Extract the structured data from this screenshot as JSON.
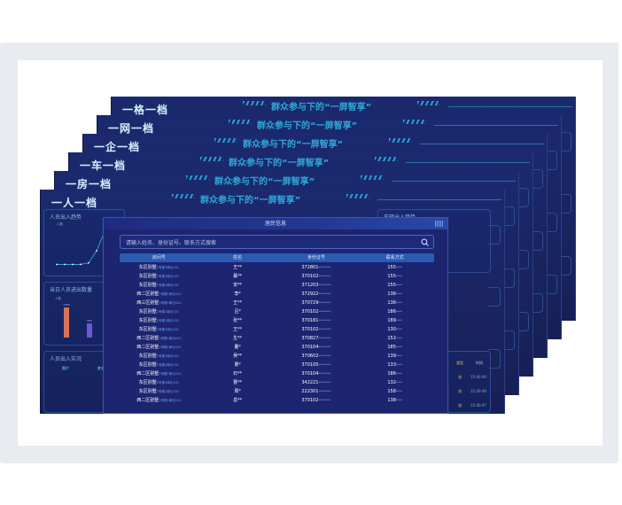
{
  "banner": "群众参与下的“一屏智享”",
  "sheets": [
    "一格一档",
    "一网一档",
    "一企一档",
    "一车一档",
    "一房一档",
    "一人一档"
  ],
  "front": {
    "left_panels": {
      "trend_title": "人员出入趋势",
      "trend_unit": "人数",
      "trend_values": [
        10,
        10,
        10,
        10,
        40,
        280,
        650,
        340,
        300
      ],
      "count_title": "当日人员进出数量",
      "count_unit": "人数",
      "count_values": [
        1250,
        587,
        1304
      ],
      "live_title": "人员出入实况",
      "live_columns": [
        "照片",
        "姓名"
      ]
    },
    "right_panels": {
      "vehicle_title": "车辆出入趋势",
      "vehicle_columns": [
        "类型",
        "时间"
      ],
      "vehicle_rows": [
        [
          "进",
          "15:40:49"
        ],
        [
          "进",
          "15:40:49"
        ],
        [
          "进",
          "15:40:47"
        ]
      ]
    },
    "modal": {
      "title": "居民信息",
      "search_placeholder": "请输入姓名、身份证号、联系方式搜索",
      "columns": [
        "房间号",
        "姓名",
        "身份证号",
        "联系方式"
      ],
      "rows": [
        [
          "东区别墅",
          "1号楼1单元101",
          "王**",
          "372801",
          "155"
        ],
        [
          "东区别墅",
          "1号楼1单元101",
          "綦**",
          "370102",
          "155"
        ],
        [
          "东区别墅",
          "1号楼1单元101",
          "安**",
          "371203",
          "155"
        ],
        [
          "西二区别墅",
          "1号楼1单元101",
          "李*",
          "372922",
          "136"
        ],
        [
          "西三区别墅",
          "1号楼1单元101",
          "王**",
          "370729",
          "136"
        ],
        [
          "东区别墅",
          "1号楼1单元101",
          "吕*",
          "370102",
          "186"
        ],
        [
          "东区别墅",
          "1号楼1单元101",
          "张**",
          "370181",
          "189"
        ],
        [
          "东区别墅",
          "1号楼1单元101",
          "王**",
          "370102",
          "130"
        ],
        [
          "西二区别墅",
          "1号楼1单元101",
          "生**",
          "370827",
          "152"
        ],
        [
          "西二区别墅",
          "1号楼1单元101",
          "董*",
          "370104",
          "185"
        ],
        [
          "东区别墅",
          "1号楼1单元101",
          "吴**",
          "370602",
          "139"
        ],
        [
          "东区别墅",
          "1号楼1单元101",
          "曹*",
          "370105",
          "133"
        ],
        [
          "西二区别墅",
          "1号楼1单元101",
          "石**",
          "370104",
          "186"
        ],
        [
          "东区别墅",
          "1号楼1单元101",
          "曹**",
          "342221",
          "132"
        ],
        [
          "东区别墅",
          "1号楼1单元101",
          "周*",
          "222301",
          "158"
        ],
        [
          "西二区别墅",
          "1号楼1单元101",
          "岳**",
          "370102",
          "138"
        ]
      ]
    }
  }
}
